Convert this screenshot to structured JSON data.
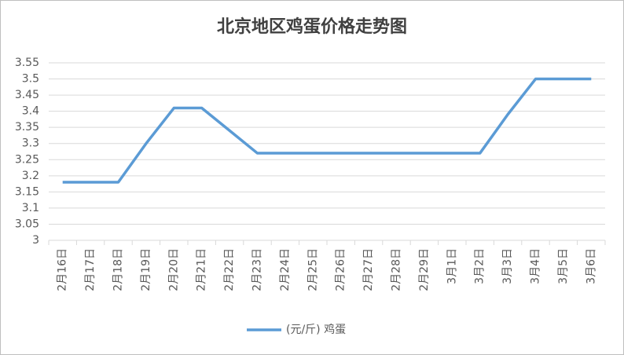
{
  "chart_data": {
    "type": "line",
    "title": "北京地区鸡蛋价格走势图",
    "categories": [
      "2月16日",
      "2月17日",
      "2月18日",
      "2月19日",
      "2月20日",
      "2月21日",
      "2月22日",
      "2月23日",
      "2月24日",
      "2月25日",
      "2月26日",
      "2月27日",
      "2月28日",
      "2月29日",
      "3月1日",
      "3月2日",
      "3月3日",
      "3月4日",
      "3月5日",
      "3月6日"
    ],
    "series": [
      {
        "name": "(元/斤) 鸡蛋",
        "color": "#5b9bd5",
        "values": [
          3.18,
          3.18,
          3.18,
          3.3,
          3.41,
          3.41,
          3.34,
          3.27,
          3.27,
          3.27,
          3.27,
          3.27,
          3.27,
          3.27,
          3.27,
          3.27,
          3.39,
          3.5,
          3.5,
          3.5
        ]
      }
    ],
    "ylim": [
      3,
      3.55
    ],
    "yticks": [
      3,
      3.05,
      3.1,
      3.15,
      3.2,
      3.25,
      3.3,
      3.35,
      3.4,
      3.45,
      3.5,
      3.55
    ],
    "grid": true,
    "legend": "bottom"
  }
}
